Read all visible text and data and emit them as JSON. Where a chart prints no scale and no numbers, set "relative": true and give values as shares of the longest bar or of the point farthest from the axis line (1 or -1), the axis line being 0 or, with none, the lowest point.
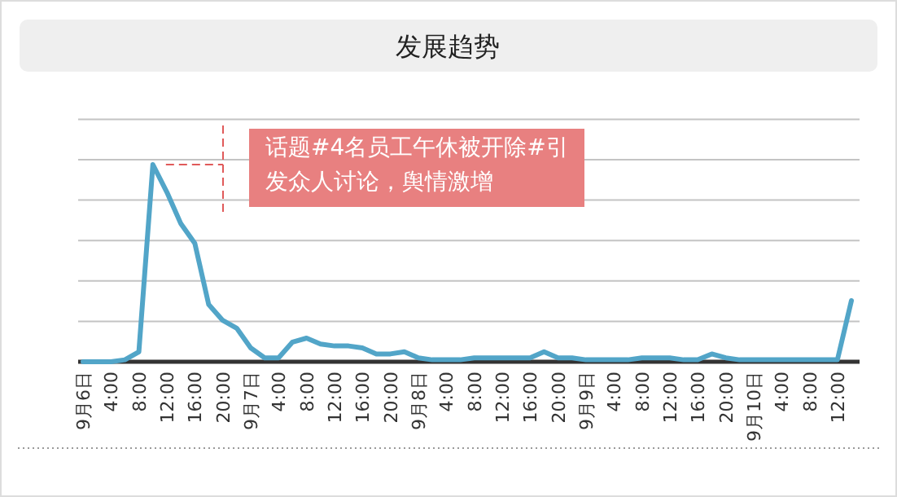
{
  "chart_data": {
    "type": "line",
    "title": "发展趋势",
    "relative": true,
    "grid": "y",
    "color": "#52a5c8",
    "categories": [
      "9月6日",
      null,
      "4:00",
      null,
      "8:00",
      null,
      "12:00",
      null,
      "16:00",
      null,
      "20:00",
      null,
      "9月7日",
      null,
      "4:00",
      null,
      "8:00",
      null,
      "12:00",
      null,
      "16:00",
      null,
      "20:00",
      null,
      "9月8日",
      null,
      "4:00",
      null,
      "8:00",
      null,
      "12:00",
      null,
      "16:00",
      null,
      "20:00",
      null,
      "9月9日",
      null,
      "4:00",
      null,
      "8:00",
      null,
      "12:00",
      null,
      "16:00",
      null,
      "20:00",
      null,
      "9月10日",
      null,
      "4:00",
      null,
      "8:00",
      null,
      "12:00",
      null
    ],
    "values": [
      0,
      0,
      0,
      0.01,
      0.05,
      1.0,
      0.86,
      0.7,
      0.6,
      0.29,
      0.21,
      0.17,
      0.07,
      0.02,
      0.02,
      0.1,
      0.12,
      0.09,
      0.08,
      0.08,
      0.07,
      0.04,
      0.04,
      0.05,
      0.02,
      0.01,
      0.01,
      0.01,
      0.02,
      0.02,
      0.02,
      0.02,
      0.02,
      0.05,
      0.02,
      0.02,
      0.01,
      0.01,
      0.01,
      0.01,
      0.02,
      0.02,
      0.02,
      0.01,
      0.01,
      0.04,
      0.02,
      0.01,
      0.01,
      0.01,
      0.01,
      0.01,
      0.01,
      0.01,
      0.01,
      0.31
    ],
    "annotations": [
      "话题#4名员工午休被开除#引发众人讨论，舆情激增"
    ]
  }
}
